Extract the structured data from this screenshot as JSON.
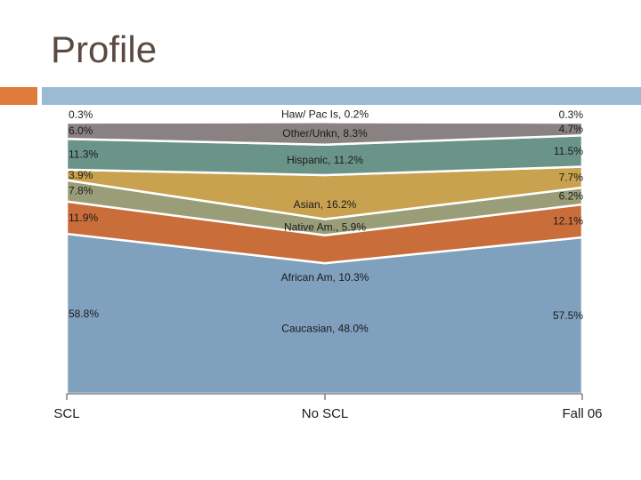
{
  "slide": {
    "title": "Profile"
  },
  "colors": {
    "accent_bar": "#e07b39",
    "title_bar": "#9dbad5",
    "title_text": "#5a4a42"
  },
  "chart_data": {
    "type": "area",
    "title": "",
    "xlabel": "",
    "ylabel": "",
    "ylim": [
      0,
      100
    ],
    "grid": true,
    "categories": [
      "SCL",
      "No SCL",
      "Fall 06"
    ],
    "series": [
      {
        "name": "Caucasian",
        "values": [
          58.8,
          48.0,
          57.5
        ],
        "color": "#7fa1bd",
        "labels": [
          "58.8%",
          "Caucasian, 48.0%",
          "57.5%"
        ]
      },
      {
        "name": "African Am",
        "values": [
          11.9,
          10.3,
          12.1
        ],
        "color": "#c96e3a",
        "labels": [
          "11.9%",
          "African Am, 10.3%",
          "12.1%"
        ]
      },
      {
        "name": "Native Am.",
        "values": [
          7.8,
          5.9,
          6.2
        ],
        "color": "#9a9e78",
        "labels": [
          "7.8%",
          "Native Am., 5.9%",
          "6.2%"
        ]
      },
      {
        "name": "Asian",
        "values": [
          3.9,
          16.2,
          7.7
        ],
        "color": "#c9a24f",
        "labels": [
          "3.9%",
          "Asian, 16.2%",
          "7.7%"
        ]
      },
      {
        "name": "Hispanic",
        "values": [
          11.3,
          11.2,
          11.5
        ],
        "color": "#6a9488",
        "labels": [
          "11.3%",
          "Hispanic, 11.2%",
          "11.5%"
        ]
      },
      {
        "name": "Other/Unkn",
        "values": [
          6.0,
          8.3,
          4.7
        ],
        "color": "#8a8282",
        "labels": [
          "6.0%",
          "Other/Unkn, 8.3%",
          "4.7%"
        ]
      },
      {
        "name": "Haw/ Pac Is",
        "values": [
          0.3,
          0.2,
          0.3
        ],
        "color": "#c9d7e6",
        "labels": [
          "0.3%",
          "Haw/ Pac Is, 0.2%",
          "0.3%"
        ]
      }
    ]
  }
}
